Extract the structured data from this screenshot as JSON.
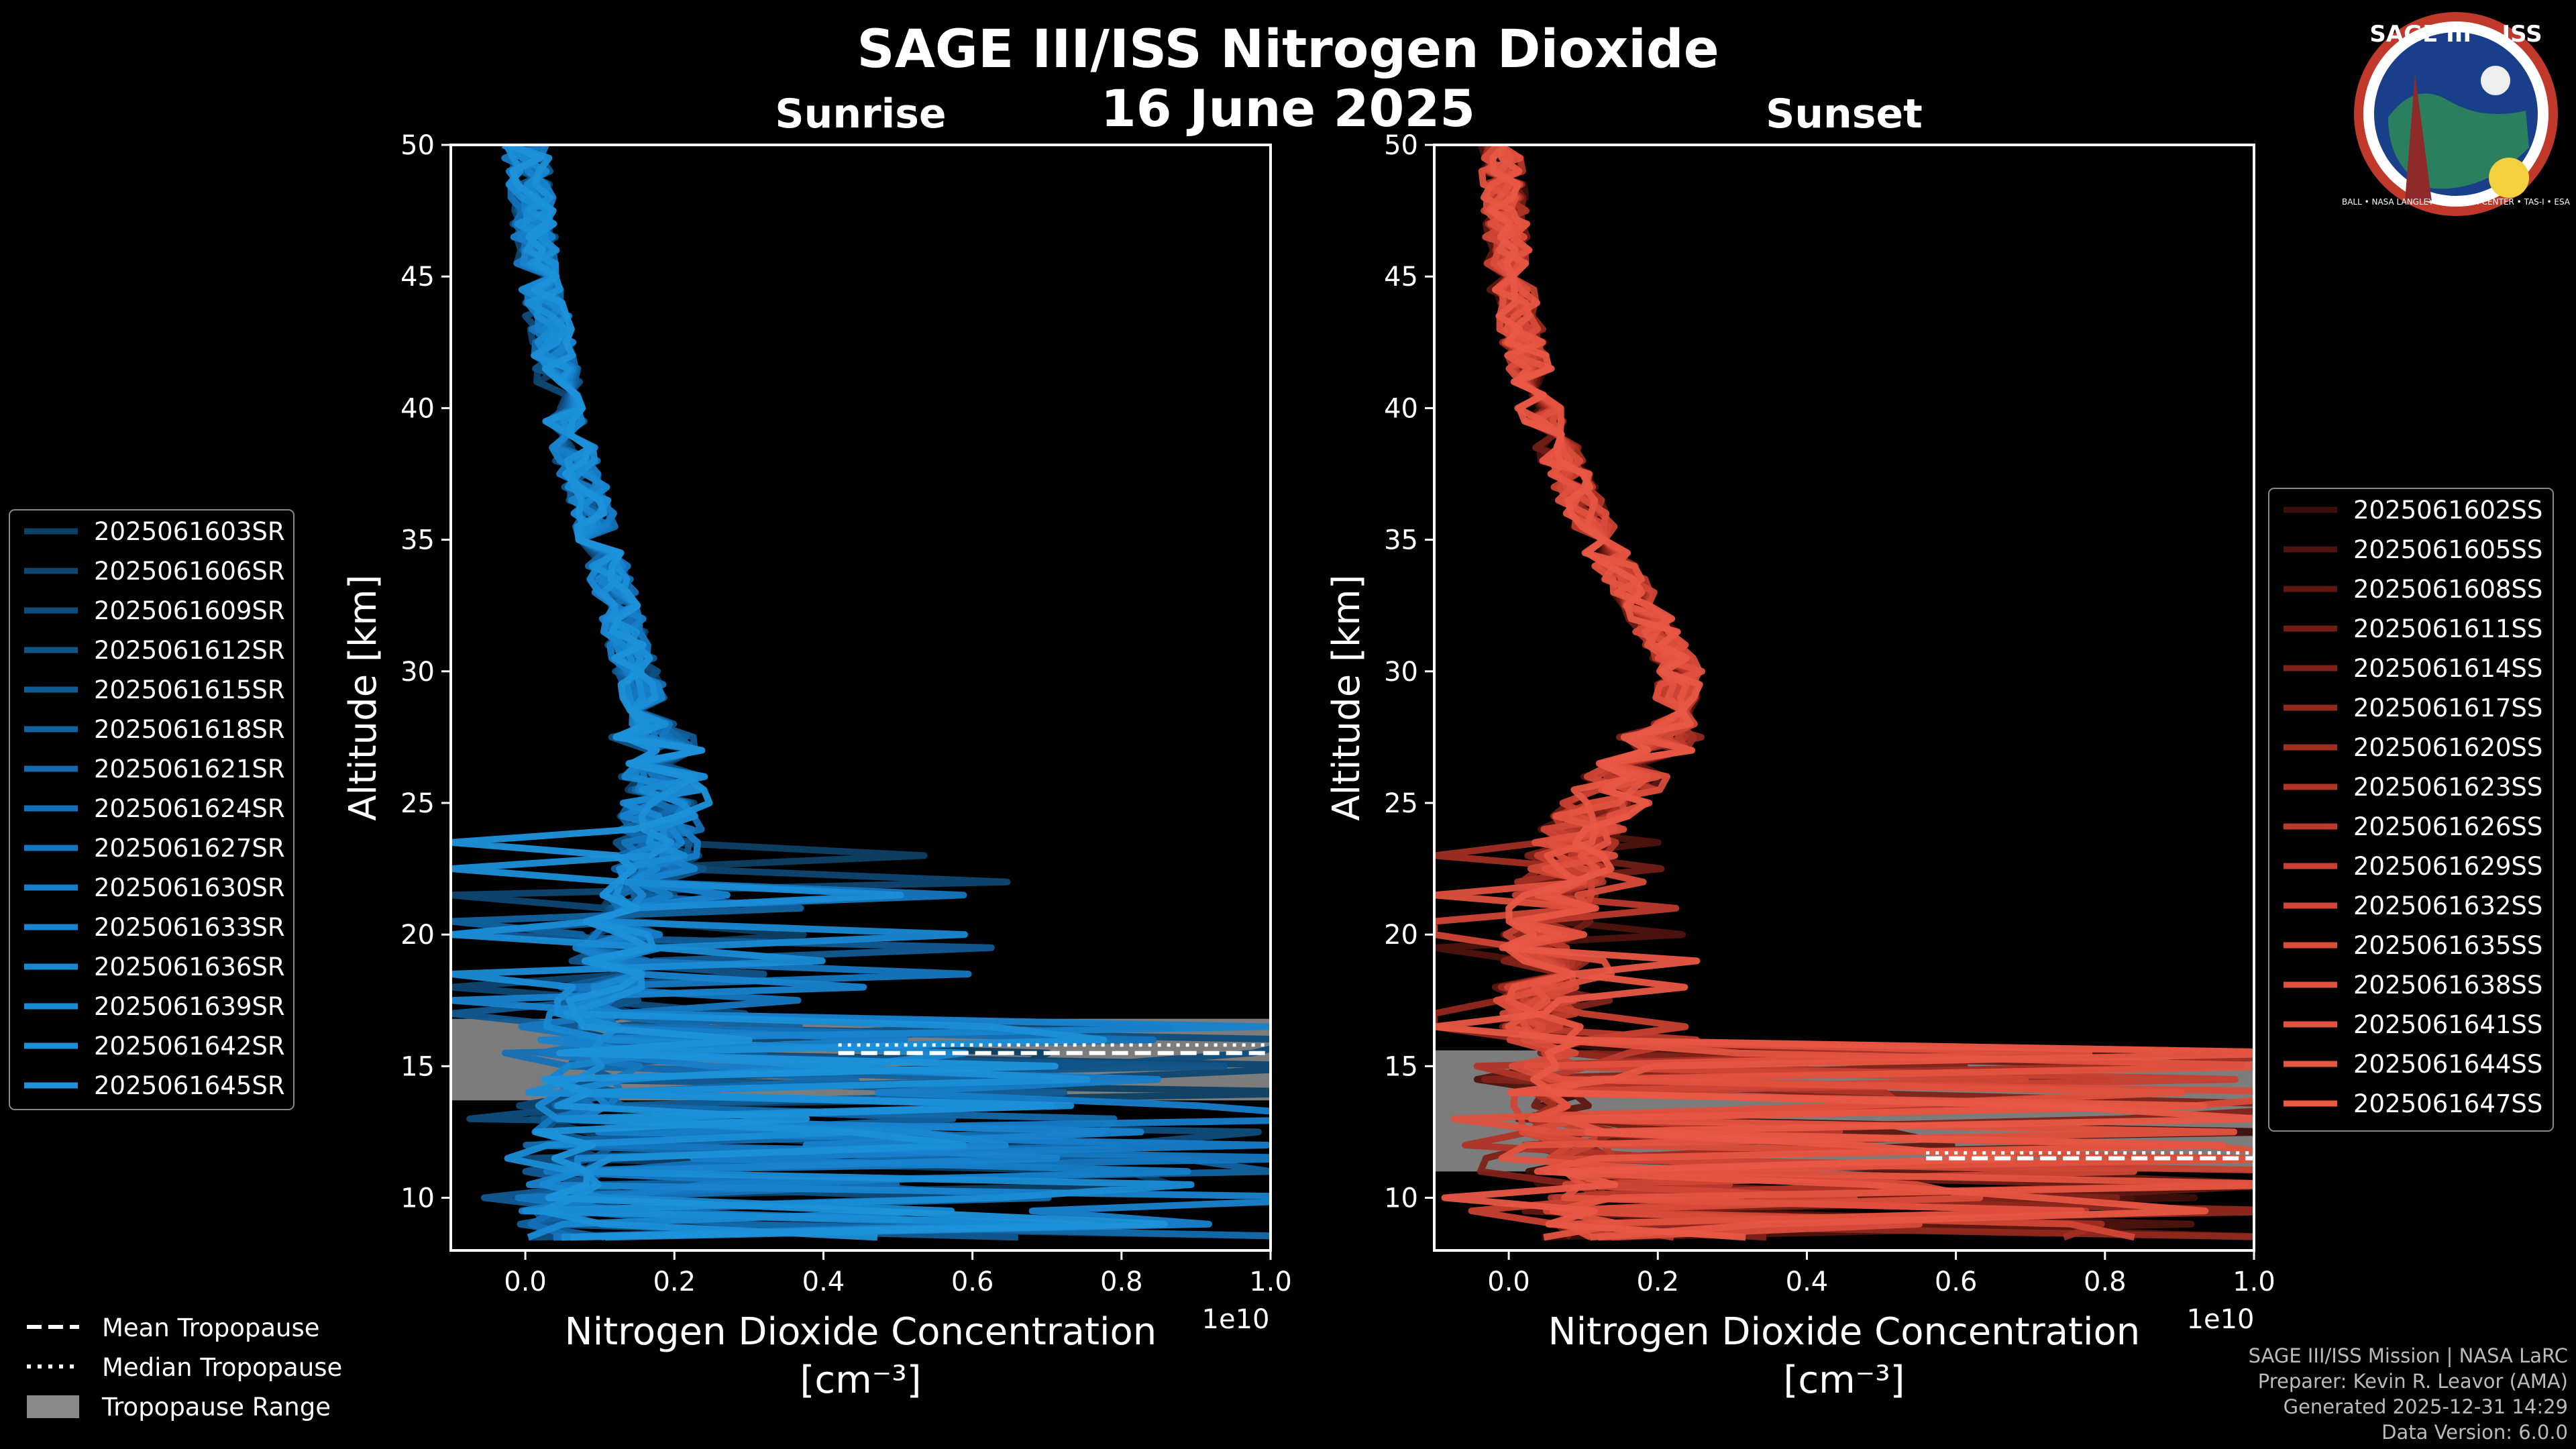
{
  "header": {
    "title": "SAGE III/ISS Nitrogen Dioxide",
    "date": "16 June 2025"
  },
  "logo": {
    "text": "SAGE III • ISS",
    "ring_text": "BALL • NASA LANGLEY RESEARCH CENTER • TAS-I • ESA"
  },
  "chart_data": [
    {
      "type": "line",
      "panel": "sunrise",
      "title": "Sunrise",
      "xlabel": "Nitrogen Dioxide Concentration",
      "xunit": "[cm⁻³]",
      "ylabel": "Altitude [km]",
      "xlim": [
        -0.1,
        1.0
      ],
      "ylim": [
        8,
        50
      ],
      "x_scale_label": "1e10",
      "x_ticks": [
        0.0,
        0.2,
        0.4,
        0.6,
        0.8,
        1.0
      ],
      "x_tick_labels": [
        "0.0",
        "0.2",
        "0.4",
        "0.6",
        "0.8",
        "1.0"
      ],
      "y_ticks": [
        10,
        15,
        20,
        25,
        30,
        35,
        40,
        45,
        50
      ],
      "y_tick_labels": [
        "10",
        "15",
        "20",
        "25",
        "30",
        "35",
        "40",
        "45",
        "50"
      ],
      "base_color": "#1f8fd6",
      "tropopause": {
        "mean": 15.5,
        "median": 15.6,
        "range": [
          13.7,
          16.8
        ],
        "x_start": 0.42
      },
      "base_profile": [
        {
          "alt": 50,
          "x": 0.0
        },
        {
          "alt": 45,
          "x": 0.02
        },
        {
          "alt": 40,
          "x": 0.05
        },
        {
          "alt": 35,
          "x": 0.1
        },
        {
          "alt": 30,
          "x": 0.15
        },
        {
          "alt": 27,
          "x": 0.18
        },
        {
          "alt": 25,
          "x": 0.19
        },
        {
          "alt": 22,
          "x": 0.17
        },
        {
          "alt": 20,
          "x": 0.13
        },
        {
          "alt": 18,
          "x": 0.1
        },
        {
          "alt": 16,
          "x": 0.08
        },
        {
          "alt": 14,
          "x": 0.07
        },
        {
          "alt": 12,
          "x": 0.06
        },
        {
          "alt": 10,
          "x": 0.05
        },
        {
          "alt": 8.5,
          "x": 0.05
        }
      ],
      "series": [
        {
          "name": "2025061603SR",
          "color": "#0d3f63"
        },
        {
          "name": "2025061606SR",
          "color": "#0e4670"
        },
        {
          "name": "2025061609SR",
          "color": "#0f4d7c"
        },
        {
          "name": "2025061612SR",
          "color": "#105488"
        },
        {
          "name": "2025061615SR",
          "color": "#115b94"
        },
        {
          "name": "2025061618SR",
          "color": "#1262a0"
        },
        {
          "name": "2025061621SR",
          "color": "#1369ab"
        },
        {
          "name": "2025061624SR",
          "color": "#1470b6"
        },
        {
          "name": "2025061627SR",
          "color": "#1577c0"
        },
        {
          "name": "2025061630SR",
          "color": "#167dc9"
        },
        {
          "name": "2025061633SR",
          "color": "#1883cf"
        },
        {
          "name": "2025061636SR",
          "color": "#1988d3"
        },
        {
          "name": "2025061639SR",
          "color": "#1a8cd6"
        },
        {
          "name": "2025061642SR",
          "color": "#1b8fd8"
        },
        {
          "name": "2025061645SR",
          "color": "#1d92da"
        }
      ]
    },
    {
      "type": "line",
      "panel": "sunset",
      "title": "Sunset",
      "xlabel": "Nitrogen Dioxide Concentration",
      "xunit": "[cm⁻³]",
      "ylabel": "Altitude [km]",
      "xlim": [
        -0.1,
        1.0
      ],
      "ylim": [
        8,
        50
      ],
      "x_scale_label": "1e10",
      "x_ticks": [
        0.0,
        0.2,
        0.4,
        0.6,
        0.8,
        1.0
      ],
      "x_tick_labels": [
        "0.0",
        "0.2",
        "0.4",
        "0.6",
        "0.8",
        "1.0"
      ],
      "y_ticks": [
        10,
        15,
        20,
        25,
        30,
        35,
        40,
        45,
        50
      ],
      "y_tick_labels": [
        "10",
        "15",
        "20",
        "25",
        "30",
        "35",
        "40",
        "45",
        "50"
      ],
      "base_color": "#e8543f",
      "tropopause": {
        "mean": 11.5,
        "median": 11.5,
        "range": [
          11.0,
          15.6
        ],
        "x_start": 0.56
      },
      "base_profile": [
        {
          "alt": 50,
          "x": -0.01
        },
        {
          "alt": 45,
          "x": 0.0
        },
        {
          "alt": 40,
          "x": 0.04
        },
        {
          "alt": 35,
          "x": 0.12
        },
        {
          "alt": 32,
          "x": 0.19
        },
        {
          "alt": 30,
          "x": 0.23
        },
        {
          "alt": 28,
          "x": 0.22
        },
        {
          "alt": 26,
          "x": 0.16
        },
        {
          "alt": 24,
          "x": 0.1
        },
        {
          "alt": 22,
          "x": 0.07
        },
        {
          "alt": 20,
          "x": 0.05
        },
        {
          "alt": 18,
          "x": 0.04
        },
        {
          "alt": 16,
          "x": 0.05
        },
        {
          "alt": 14,
          "x": 0.06
        },
        {
          "alt": 12,
          "x": 0.08
        },
        {
          "alt": 10,
          "x": 0.09
        },
        {
          "alt": 8.5,
          "x": 0.1
        }
      ],
      "series": [
        {
          "name": "2025061602SS",
          "color": "#3c0e0a"
        },
        {
          "name": "2025061605SS",
          "color": "#4d130d"
        },
        {
          "name": "2025061608SS",
          "color": "#5e1811"
        },
        {
          "name": "2025061611SS",
          "color": "#6f1d15"
        },
        {
          "name": "2025061614SS",
          "color": "#802219"
        },
        {
          "name": "2025061617SS",
          "color": "#91281d"
        },
        {
          "name": "2025061620SS",
          "color": "#a12e22"
        },
        {
          "name": "2025061623SS",
          "color": "#b03427"
        },
        {
          "name": "2025061626SS",
          "color": "#bc3a2c"
        },
        {
          "name": "2025061629SS",
          "color": "#c74031"
        },
        {
          "name": "2025061632SS",
          "color": "#d04636"
        },
        {
          "name": "2025061635SS",
          "color": "#d84c3a"
        },
        {
          "name": "2025061638SS",
          "color": "#df503d"
        },
        {
          "name": "2025061641SS",
          "color": "#e35340"
        },
        {
          "name": "2025061644SS",
          "color": "#e65642"
        },
        {
          "name": "2025061647SS",
          "color": "#e85944"
        }
      ]
    }
  ],
  "bottom_legend": {
    "mean": "Mean Tropopause",
    "median": "Median Tropopause",
    "range": "Tropopause Range"
  },
  "credits": {
    "line1": "SAGE III/ISS Mission | NASA LaRC",
    "line2": "Preparer: Kevin R. Leavor (AMA)",
    "line3": "Generated 2025-12-31 14:29",
    "line4": "Data Version: 6.0.0"
  },
  "colors": {
    "background": "#000000",
    "axis": "#ffffff",
    "tropopause_fill": "#8a8a8a"
  }
}
